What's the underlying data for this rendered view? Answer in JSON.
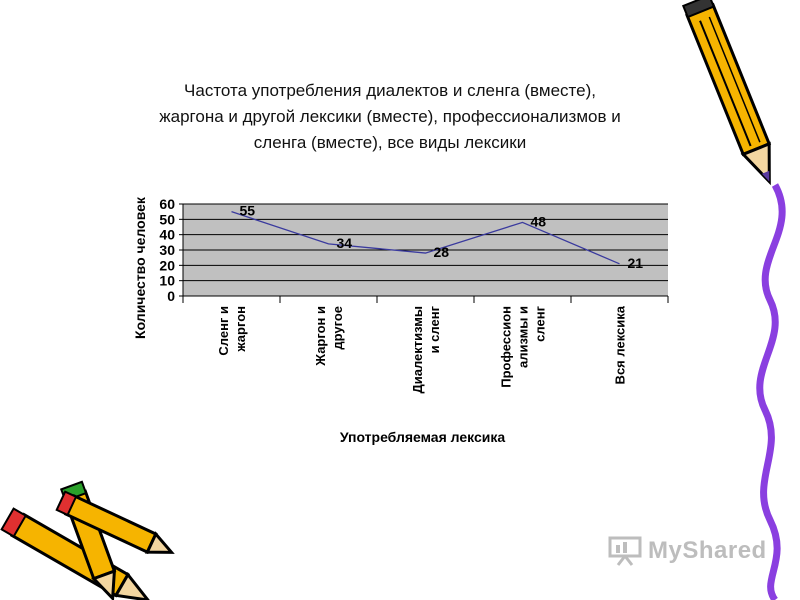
{
  "slide": {
    "title": "Частота употребления диалектов и сленга (вместе),\nжаргона и другой лексики (вместе), профессионализмов и\nсленга (вместе), все виды лексики",
    "watermark": "MyShared"
  },
  "colors": {
    "plot_bg": "#c0c0c0",
    "line": "#3a3a9e",
    "pencil_body": "#f6b400",
    "pencil_tip": "#e03030",
    "ribbon": "#8a3fe0"
  },
  "icons": [
    "pencil-icon",
    "presentation-board-icon"
  ],
  "chart_data": {
    "type": "line",
    "categories": [
      [
        "Сленг и",
        "жаргон"
      ],
      [
        "Жаргон и",
        "другое"
      ],
      [
        "Диалектизмы",
        "и сленг"
      ],
      [
        "Профессион",
        "ализмы и",
        "сленг"
      ],
      [
        "Вся лексика"
      ]
    ],
    "values": [
      55,
      34,
      28,
      48,
      21
    ],
    "xlabel": "Употребляемая лексика",
    "ylabel": "Количество человек",
    "ylim": [
      0,
      60
    ],
    "yticks": [
      0,
      10,
      20,
      30,
      40,
      50,
      60
    ],
    "grid": true,
    "legend": "none"
  }
}
